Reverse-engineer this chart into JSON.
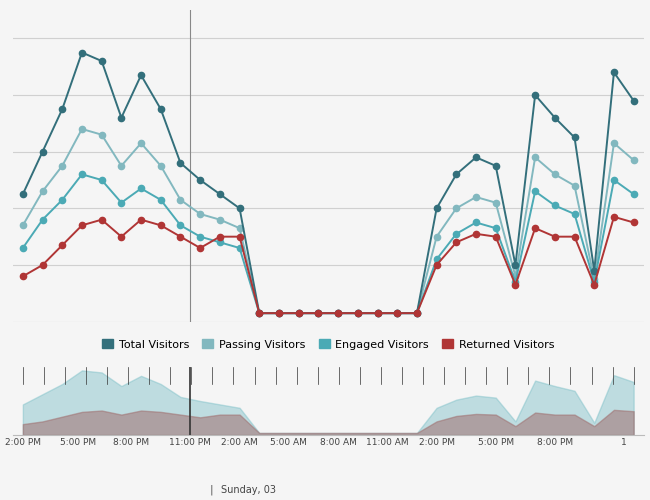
{
  "background_color": "#f5f5f5",
  "grid_color": "#d0d0d0",
  "x_labels": [
    "2:00 PM",
    "5:00 PM",
    "8:00 PM",
    "11:00 PM",
    "2:00 AM",
    "5:00 AM",
    "8:00 AM",
    "11:00 AM",
    "2:00 PM",
    "5:00 PM",
    "8:00 PM",
    "1"
  ],
  "day_label": "Sunday, 03",
  "legend_labels": [
    "Total Visitors",
    "Passing Visitors",
    "Engaged Visitors",
    "Returned Visitors"
  ],
  "legend_colors": [
    "#336f7b",
    "#82b8bf",
    "#4baab5",
    "#b03535"
  ],
  "total_visitors": [
    52,
    62,
    75,
    95,
    92,
    78,
    90,
    82,
    62,
    55,
    52,
    47,
    5,
    5,
    5,
    5,
    5,
    5,
    5,
    5,
    5,
    45,
    55,
    60,
    58,
    25,
    82,
    75,
    70,
    25,
    90,
    80
  ],
  "passing_visitors": [
    38,
    45,
    54,
    68,
    66,
    58,
    65,
    60,
    47,
    42,
    40,
    37,
    5,
    5,
    5,
    5,
    5,
    5,
    5,
    5,
    5,
    35,
    43,
    46,
    44,
    20,
    60,
    55,
    53,
    20,
    67,
    60
  ],
  "engaged_visitors": [
    28,
    35,
    41,
    52,
    50,
    43,
    48,
    45,
    36,
    33,
    30,
    28,
    5,
    5,
    5,
    5,
    5,
    5,
    5,
    5,
    5,
    25,
    33,
    36,
    33,
    18,
    48,
    43,
    42,
    18,
    52,
    47
  ],
  "returned_visitors": [
    18,
    22,
    28,
    35,
    38,
    32,
    38,
    36,
    34,
    28,
    34,
    32,
    5,
    5,
    5,
    5,
    5,
    5,
    5,
    5,
    5,
    22,
    30,
    33,
    32,
    15,
    36,
    32,
    32,
    15,
    40,
    37
  ],
  "ylim": [
    0,
    110
  ],
  "total_color": "#336f7b",
  "passing_color": "#82b8bf",
  "engaged_color": "#4baab5",
  "returned_color": "#b03535",
  "minimap_teal_color": "#7bbfc7",
  "minimap_brown_color": "#a07070"
}
